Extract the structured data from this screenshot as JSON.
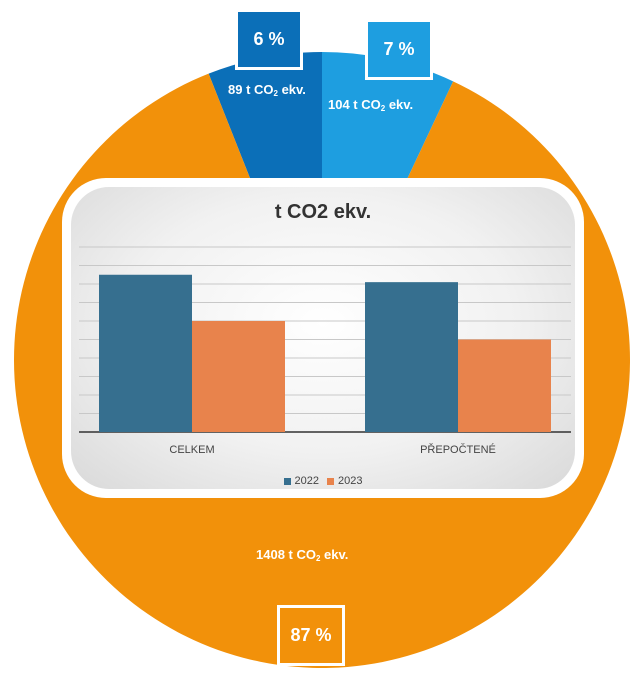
{
  "pie": {
    "segments": [
      {
        "label_value": "89 t CO",
        "label_unit": " ekv.",
        "sub": "2",
        "percent": 6,
        "percent_label": "6 %",
        "color": "#0b6fb8"
      },
      {
        "label_value": "104 t CO",
        "label_unit": " ekv.",
        "sub": "2",
        "percent": 7,
        "percent_label": "7 %",
        "color": "#1e9ee0"
      },
      {
        "label_value": "1408 t CO",
        "label_unit": " ekv.",
        "sub": "2",
        "percent": 87,
        "percent_label": "87 %",
        "color": "#f2910a"
      }
    ]
  },
  "chart_data": {
    "type": "bar",
    "title": "t CO2 ekv.",
    "categories": [
      "CELKEM",
      "PŘEPOČTENÉ"
    ],
    "series": [
      {
        "name": "2022",
        "values": [
          1700,
          1620
        ],
        "color": "#366f8f"
      },
      {
        "name": "2023",
        "values": [
          1200,
          1000
        ],
        "color": "#e8834c"
      }
    ],
    "ylim": [
      0,
      2000
    ],
    "grid": true,
    "legend": "bottom"
  }
}
